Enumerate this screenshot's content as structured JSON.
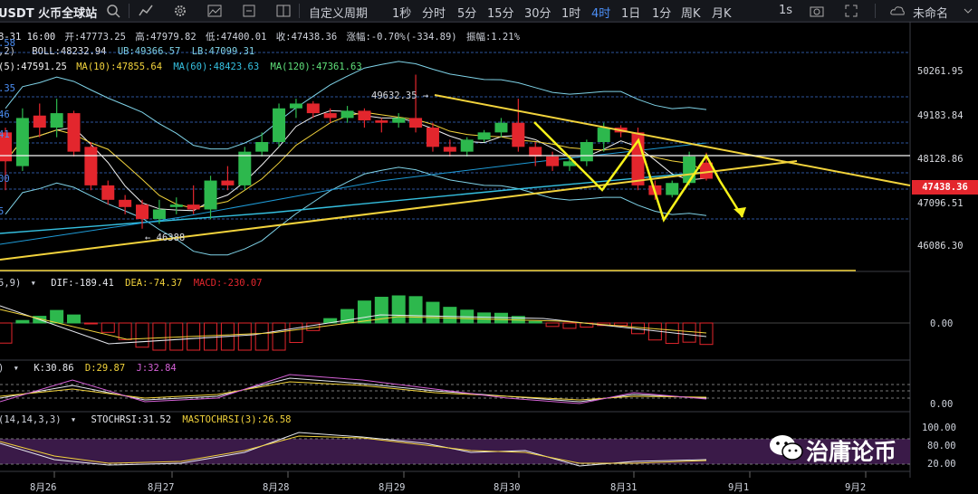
{
  "toolbar": {
    "symbol": "USDT 火币全球站",
    "custom_period": "自定义周期",
    "periods": [
      "1秒",
      "分时",
      "5分",
      "15分",
      "30分",
      "1时",
      "4时",
      "1日",
      "1分",
      "周K",
      "月K"
    ],
    "active_period": "4时",
    "interval_1s": "1s",
    "unnamed": "未命名"
  },
  "info": {
    "datetime": "8-31 16:00",
    "open": "开:47773.25",
    "high": "高:47979.82",
    "low": "低:47400.01",
    "close": "收:47438.36",
    "change": "涨幅:-0.70%(-334.89)",
    "amplitude": "振幅:1.21%",
    "boll_params": ",2)",
    "boll": "BOLL:48232.94",
    "ub": "UB:49366.57",
    "lb": "LB:47099.31",
    "ma5": "(5):47591.25",
    "ma10": "MA(10):47855.64",
    "ma60": "MA(60):48423.63",
    "ma120": "MA(120):47361.63",
    "macd_params": "5,9)",
    "dif": "DIF:-189.41",
    "dea": "DEA:-74.37",
    "macd": "MACD:-230.07",
    "k": "K:30.86",
    "d": "D:29.87",
    "j": "J:32.84",
    "stoch_params": "(14,14,3,3)",
    "stochrsi": "STOCHRSI:31.52",
    "mastochrsi": "MASTOCHRSI(3):26.58"
  },
  "left_edge_labels": [
    ".58",
    ".35",
    "46",
    "41",
    "00",
    "5"
  ],
  "price_axis": [
    "50261.95",
    "49183.84",
    "48128.86",
    "47096.51",
    "46086.30"
  ],
  "current_price": "47438.36",
  "annot_high": "49632.35 →",
  "annot_low": "← 46388",
  "macd_axis": "0.00",
  "kdj_axis": "0.00",
  "stoch_axis": [
    "100.00",
    "80.00",
    "20.00"
  ],
  "date_axis": [
    "8月26",
    "8月27",
    "8月28",
    "8月29",
    "8月30",
    "8月31",
    "9月1",
    "9月2"
  ],
  "watermark": "治庸论币",
  "colors": {
    "up": "#2db84d",
    "down": "#e3262d",
    "trend": "#f2d33c",
    "arrow": "#f7f21a",
    "accent": "#4b8ef5"
  },
  "chart_data": {
    "type": "candlestick",
    "x": [
      "8月26",
      "8月27",
      "8月28",
      "8月29",
      "8月30",
      "8月31"
    ],
    "candles": [
      [
        48400,
        47800,
        48500,
        47200
      ],
      [
        47700,
        48700,
        48900,
        47600
      ],
      [
        48750,
        48500,
        49000,
        48300
      ],
      [
        48500,
        48800,
        49100,
        48300
      ],
      [
        48800,
        48000,
        48850,
        47900
      ],
      [
        48100,
        47300,
        48200,
        47200
      ],
      [
        47300,
        47000,
        47400,
        46900
      ],
      [
        47000,
        46850,
        47100,
        46700
      ],
      [
        46900,
        46600,
        47000,
        46400
      ],
      [
        46600,
        46800,
        47000,
        46500
      ],
      [
        46850,
        46900,
        47050,
        46700
      ],
      [
        46900,
        46800,
        47300,
        46700
      ],
      [
        46800,
        47400,
        47500,
        46600
      ],
      [
        47400,
        47300,
        47700,
        47200
      ],
      [
        47300,
        48000,
        48100,
        47200
      ],
      [
        48000,
        48200,
        48400,
        47900
      ],
      [
        48200,
        48900,
        49000,
        48100
      ],
      [
        48900,
        49000,
        49100,
        48700
      ],
      [
        49000,
        48800,
        49050,
        48700
      ],
      [
        48800,
        48700,
        48900,
        48600
      ],
      [
        48700,
        48850,
        48950,
        48600
      ],
      [
        48850,
        48650,
        48900,
        48500
      ],
      [
        48650,
        48600,
        48700,
        48400
      ],
      [
        48600,
        48700,
        48800,
        48500
      ],
      [
        48700,
        48500,
        49600,
        48400
      ],
      [
        48500,
        48100,
        48600,
        48000
      ],
      [
        48100,
        48000,
        48250,
        47900
      ],
      [
        48000,
        48250,
        48300,
        47900
      ],
      [
        48250,
        48400,
        48450,
        48200
      ],
      [
        48400,
        48600,
        48700,
        48300
      ],
      [
        48600,
        48100,
        49100,
        48000
      ],
      [
        48100,
        47900,
        48200,
        47700
      ],
      [
        47900,
        47700,
        48000,
        47600
      ],
      [
        47700,
        47800,
        47900,
        47600
      ],
      [
        47800,
        48200,
        48250,
        47700
      ],
      [
        48200,
        48500,
        48600,
        48000
      ],
      [
        48500,
        48400,
        48550,
        48300
      ],
      [
        48400,
        47300,
        48500,
        47200
      ],
      [
        47300,
        47100,
        47400,
        47000
      ],
      [
        47100,
        47350,
        47400,
        47050
      ],
      [
        47350,
        47900,
        48000,
        47300
      ],
      [
        47773.25,
        47438.36,
        47979.82,
        47400.01
      ]
    ],
    "ylim": [
      45700,
      50700
    ]
  }
}
